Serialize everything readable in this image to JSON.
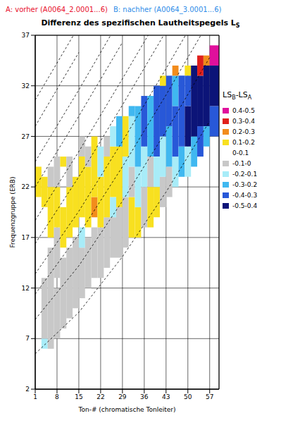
{
  "chart_data": {
    "type": "heatmap",
    "annotations": [
      {
        "text": "A: vorher (A0064_2.0001...6)",
        "color": "#e8102c"
      },
      {
        "text": "B: nachher (A0064_3.0001...6)",
        "color": "#2e8ce8"
      }
    ],
    "title": "Differenz des spezifischen Lautheitspegels L",
    "title_subscript": "S",
    "x_label": "Ton-# (chromatische Tonleiter)",
    "y_label": "Frequenzgruppe (ERB)",
    "xlim": [
      1,
      60
    ],
    "xticks": [
      1,
      8,
      15,
      22,
      29,
      36,
      43,
      50,
      57
    ],
    "ylim": [
      2,
      37
    ],
    "yticks": [
      2,
      7,
      12,
      17,
      22,
      27,
      32,
      37
    ],
    "grid": true,
    "colorbar": {
      "title_parts": [
        {
          "text": "LS"
        },
        {
          "text": "B",
          "sub": true
        },
        {
          "text": "-LS"
        },
        {
          "text": "A",
          "sub": true
        }
      ],
      "ranges": [
        [
          0.4,
          0.5
        ],
        [
          0.3,
          0.4
        ],
        [
          0.2,
          0.3
        ],
        [
          0.1,
          0.2
        ],
        [
          0,
          0.1
        ],
        [
          -0.1,
          0
        ],
        [
          -0.2,
          -0.1
        ],
        [
          -0.3,
          -0.2
        ],
        [
          -0.4,
          -0.3
        ],
        [
          -0.5,
          -0.4
        ]
      ],
      "labels": [
        "0.4-0.5",
        "0.3-0.4",
        "0.2-0.3",
        "0.1-0.2",
        "0-0.1",
        "-0.1-0",
        "-0.2-0.1",
        "-0.3-0.2",
        "-0.4-0.3",
        "-0.5-0.4"
      ],
      "colors": [
        "#e0109c",
        "#e0201c",
        "#f28c1c",
        "#f8e020",
        "#ffffff",
        "#c8c8c8",
        "#a8ecf8",
        "#40b8f0",
        "#2858d8",
        "#0c1478"
      ]
    },
    "cells": [
      {
        "x0": 1,
        "x1": 3,
        "y0": 21,
        "y1": 24,
        "value": 0.15
      },
      {
        "x0": 3,
        "x1": 5,
        "y0": 6,
        "y1": 7,
        "value": -0.15
      },
      {
        "x0": 3,
        "x1": 5,
        "y0": 7,
        "y1": 13,
        "value": -0.05
      },
      {
        "x0": 3,
        "x1": 5,
        "y0": 20,
        "y1": 23,
        "value": 0.15
      },
      {
        "x0": 5,
        "x1": 7,
        "y0": 6,
        "y1": 16,
        "value": -0.05
      },
      {
        "x0": 5,
        "x1": 7,
        "y0": 17,
        "y1": 22,
        "value": 0.15
      },
      {
        "x0": 5,
        "x1": 7,
        "y0": 22,
        "y1": 24,
        "value": -0.05
      },
      {
        "x0": 7,
        "x1": 9,
        "y0": 7,
        "y1": 12,
        "value": -0.05
      },
      {
        "x0": 7,
        "x1": 9,
        "y0": 13,
        "y1": 18,
        "value": -0.05
      },
      {
        "x0": 7,
        "x1": 9,
        "y0": 18,
        "y1": 22,
        "value": 0.15
      },
      {
        "x0": 7,
        "x1": 9,
        "y0": 22,
        "y1": 25,
        "value": -0.05
      },
      {
        "x0": 9,
        "x1": 11,
        "y0": 8,
        "y1": 15,
        "value": -0.05
      },
      {
        "x0": 9,
        "x1": 11,
        "y0": 16,
        "y1": 20,
        "value": 0.15
      },
      {
        "x0": 9,
        "x1": 11,
        "y0": 24,
        "y1": 25,
        "value": 0.15
      },
      {
        "x0": 11,
        "x1": 13,
        "y0": 9,
        "y1": 16,
        "value": -0.05
      },
      {
        "x0": 11,
        "x1": 13,
        "y0": 17,
        "y1": 22,
        "value": 0.15
      },
      {
        "x0": 11,
        "x1": 13,
        "y0": 22,
        "y1": 25,
        "value": -0.05
      },
      {
        "x0": 13,
        "x1": 15,
        "y0": 10,
        "y1": 17,
        "value": -0.05
      },
      {
        "x0": 13,
        "x1": 15,
        "y0": 18,
        "y1": 23,
        "value": 0.15
      },
      {
        "x0": 15,
        "x1": 17,
        "y0": 11,
        "y1": 16,
        "value": -0.05
      },
      {
        "x0": 15,
        "x1": 17,
        "y0": 16,
        "y1": 18,
        "value": -0.15
      },
      {
        "x0": 15,
        "x1": 17,
        "y0": 19,
        "y1": 25,
        "value": 0.15
      },
      {
        "x0": 15,
        "x1": 17,
        "y0": 25,
        "y1": 27,
        "value": -0.05
      },
      {
        "x0": 17,
        "x1": 19,
        "y0": 12,
        "y1": 17,
        "value": -0.05
      },
      {
        "x0": 17,
        "x1": 19,
        "y0": 18,
        "y1": 24,
        "value": 0.15
      },
      {
        "x0": 17,
        "x1": 19,
        "y0": 24,
        "y1": 26,
        "value": -0.05
      },
      {
        "x0": 19,
        "x1": 21,
        "y0": 13,
        "y1": 18,
        "value": -0.05
      },
      {
        "x0": 19,
        "x1": 21,
        "y0": 19,
        "y1": 21,
        "value": 0.25
      },
      {
        "x0": 19,
        "x1": 21,
        "y0": 21,
        "y1": 27,
        "value": 0.15
      },
      {
        "x0": 21,
        "x1": 23,
        "y0": 13,
        "y1": 18,
        "value": -0.05
      },
      {
        "x0": 21,
        "x1": 23,
        "y0": 18,
        "y1": 23,
        "value": 0.15
      },
      {
        "x0": 21,
        "x1": 23,
        "y0": 23,
        "y1": 26,
        "value": -0.15
      },
      {
        "x0": 23,
        "x1": 25,
        "y0": 14,
        "y1": 19,
        "value": -0.05
      },
      {
        "x0": 23,
        "x1": 25,
        "y0": 19,
        "y1": 25,
        "value": 0.15
      },
      {
        "x0": 23,
        "x1": 25,
        "y0": 25,
        "y1": 27,
        "value": -0.05
      },
      {
        "x0": 25,
        "x1": 27,
        "y0": 15,
        "y1": 19,
        "value": -0.05
      },
      {
        "x0": 25,
        "x1": 27,
        "y0": 19,
        "y1": 21,
        "value": -0.15
      },
      {
        "x0": 25,
        "x1": 27,
        "y0": 21,
        "y1": 26,
        "value": 0.15
      },
      {
        "x0": 25,
        "x1": 27,
        "y0": 26,
        "y1": 28,
        "value": -0.15
      },
      {
        "x0": 27,
        "x1": 29,
        "y0": 15,
        "y1": 20,
        "value": -0.05
      },
      {
        "x0": 27,
        "x1": 29,
        "y0": 20,
        "y1": 26,
        "value": 0.15
      },
      {
        "x0": 27,
        "x1": 29,
        "y0": 26,
        "y1": 29,
        "value": -0.25
      },
      {
        "x0": 29,
        "x1": 31,
        "y0": 16,
        "y1": 21,
        "value": -0.05
      },
      {
        "x0": 29,
        "x1": 31,
        "y0": 21,
        "y1": 25,
        "value": -0.15
      },
      {
        "x0": 29,
        "x1": 31,
        "y0": 25,
        "y1": 29,
        "value": 0.15
      },
      {
        "x0": 31,
        "x1": 33,
        "y0": 17,
        "y1": 21,
        "value": 0.15
      },
      {
        "x0": 31,
        "x1": 33,
        "y0": 21,
        "y1": 24,
        "value": -0.05
      },
      {
        "x0": 31,
        "x1": 33,
        "y0": 24,
        "y1": 29,
        "value": -0.15
      },
      {
        "x0": 31,
        "x1": 33,
        "y0": 29,
        "y1": 30,
        "value": -0.25
      },
      {
        "x0": 33,
        "x1": 35,
        "y0": 17,
        "y1": 20,
        "value": 0.15
      },
      {
        "x0": 33,
        "x1": 35,
        "y0": 20,
        "y1": 24,
        "value": -0.15
      },
      {
        "x0": 33,
        "x1": 35,
        "y0": 24,
        "y1": 30,
        "value": -0.25
      },
      {
        "x0": 35,
        "x1": 37,
        "y0": 18,
        "y1": 22,
        "value": -0.05
      },
      {
        "x0": 35,
        "x1": 37,
        "y0": 22,
        "y1": 26,
        "value": -0.15
      },
      {
        "x0": 35,
        "x1": 37,
        "y0": 26,
        "y1": 31,
        "value": -0.35
      },
      {
        "x0": 37,
        "x1": 39,
        "y0": 18,
        "y1": 22,
        "value": 0.15
      },
      {
        "x0": 37,
        "x1": 39,
        "y0": 22,
        "y1": 25,
        "value": -0.05
      },
      {
        "x0": 37,
        "x1": 39,
        "y0": 25,
        "y1": 31,
        "value": -0.25
      },
      {
        "x0": 39,
        "x1": 41,
        "y0": 19,
        "y1": 22,
        "value": 0.15
      },
      {
        "x0": 39,
        "x1": 41,
        "y0": 22,
        "y1": 25,
        "value": -0.15
      },
      {
        "x0": 39,
        "x1": 41,
        "y0": 25,
        "y1": 32,
        "value": -0.35
      },
      {
        "x0": 41,
        "x1": 43,
        "y0": 20,
        "y1": 23,
        "value": -0.05
      },
      {
        "x0": 41,
        "x1": 43,
        "y0": 23,
        "y1": 27,
        "value": -0.15
      },
      {
        "x0": 41,
        "x1": 43,
        "y0": 27,
        "y1": 32,
        "value": -0.35
      },
      {
        "x0": 41,
        "x1": 43,
        "y0": 32,
        "y1": 33,
        "value": 0.15
      },
      {
        "x0": 43,
        "x1": 45,
        "y0": 21,
        "y1": 24,
        "value": -0.05
      },
      {
        "x0": 43,
        "x1": 45,
        "y0": 24,
        "y1": 28,
        "value": -0.25
      },
      {
        "x0": 43,
        "x1": 45,
        "y0": 28,
        "y1": 33,
        "value": -0.35
      },
      {
        "x0": 45,
        "x1": 47,
        "y0": 22,
        "y1": 25,
        "value": -0.15
      },
      {
        "x0": 45,
        "x1": 47,
        "y0": 25,
        "y1": 30,
        "value": -0.35
      },
      {
        "x0": 45,
        "x1": 47,
        "y0": 30,
        "y1": 33,
        "value": -0.25
      },
      {
        "x0": 45,
        "x1": 47,
        "y0": 33,
        "y1": 34,
        "value": 0.25
      },
      {
        "x0": 47,
        "x1": 49,
        "y0": 23,
        "y1": 26,
        "value": -0.25
      },
      {
        "x0": 47,
        "x1": 49,
        "y0": 26,
        "y1": 33,
        "value": -0.35
      },
      {
        "x0": 49,
        "x1": 51,
        "y0": 23,
        "y1": 26,
        "value": -0.15
      },
      {
        "x0": 49,
        "x1": 51,
        "y0": 26,
        "y1": 30,
        "value": -0.45
      },
      {
        "x0": 49,
        "x1": 51,
        "y0": 30,
        "y1": 33,
        "value": -0.35
      },
      {
        "x0": 49,
        "x1": 51,
        "y0": 33,
        "y1": 34,
        "value": 0.15
      },
      {
        "x0": 51,
        "x1": 53,
        "y0": 24,
        "y1": 27,
        "value": -0.25
      },
      {
        "x0": 51,
        "x1": 53,
        "y0": 27,
        "y1": 34,
        "value": -0.45
      },
      {
        "x0": 53,
        "x1": 55,
        "y0": 25,
        "y1": 28,
        "value": -0.35
      },
      {
        "x0": 53,
        "x1": 55,
        "y0": 28,
        "y1": 33,
        "value": -0.45
      },
      {
        "x0": 53,
        "x1": 55,
        "y0": 33,
        "y1": 35,
        "value": 0.35
      },
      {
        "x0": 55,
        "x1": 57,
        "y0": 26,
        "y1": 28,
        "value": -0.25
      },
      {
        "x0": 55,
        "x1": 57,
        "y0": 28,
        "y1": 34,
        "value": -0.45
      },
      {
        "x0": 55,
        "x1": 57,
        "y0": 34,
        "y1": 35,
        "value": 0.25
      },
      {
        "x0": 57,
        "x1": 60,
        "y0": 27,
        "y1": 30,
        "value": -0.35
      },
      {
        "x0": 57,
        "x1": 60,
        "y0": 30,
        "y1": 34,
        "value": -0.45
      },
      {
        "x0": 57,
        "x1": 60,
        "y0": 34,
        "y1": 36,
        "value": 0.45
      }
    ],
    "harmonics": [
      {
        "x": [
          1,
          15,
          29,
          43,
          57
        ],
        "y": [
          5.5,
          9.6,
          15.1,
          21.5,
          28.5
        ]
      },
      {
        "x": [
          1,
          15,
          29,
          43,
          57
        ],
        "y": [
          8.9,
          14.2,
          20.6,
          27.5,
          34.8
        ]
      },
      {
        "x": [
          1,
          15,
          29,
          43,
          57
        ],
        "y": [
          11.4,
          17.3,
          24,
          31.1,
          38.5
        ]
      },
      {
        "x": [
          1,
          15,
          29,
          43,
          57
        ],
        "y": [
          13.4,
          19.6,
          26.5,
          33.7,
          41.1
        ]
      },
      {
        "x": [
          1,
          15,
          29,
          43
        ],
        "y": [
          16.4,
          23,
          30.1,
          37.4
        ]
      },
      {
        "x": [
          1,
          15,
          29,
          43
        ],
        "y": [
          18.7,
          25.5,
          32.7,
          40
        ]
      },
      {
        "x": [
          1,
          15,
          29
        ],
        "y": [
          22,
          29,
          36.3
        ]
      },
      {
        "x": [
          1,
          15,
          29
        ],
        "y": [
          24.5,
          31.6,
          39
        ]
      },
      {
        "x": [
          1,
          15
        ],
        "y": [
          28,
          35.3
        ]
      },
      {
        "x": [
          1,
          15
        ],
        "y": [
          30.6,
          37.9
        ]
      }
    ]
  }
}
